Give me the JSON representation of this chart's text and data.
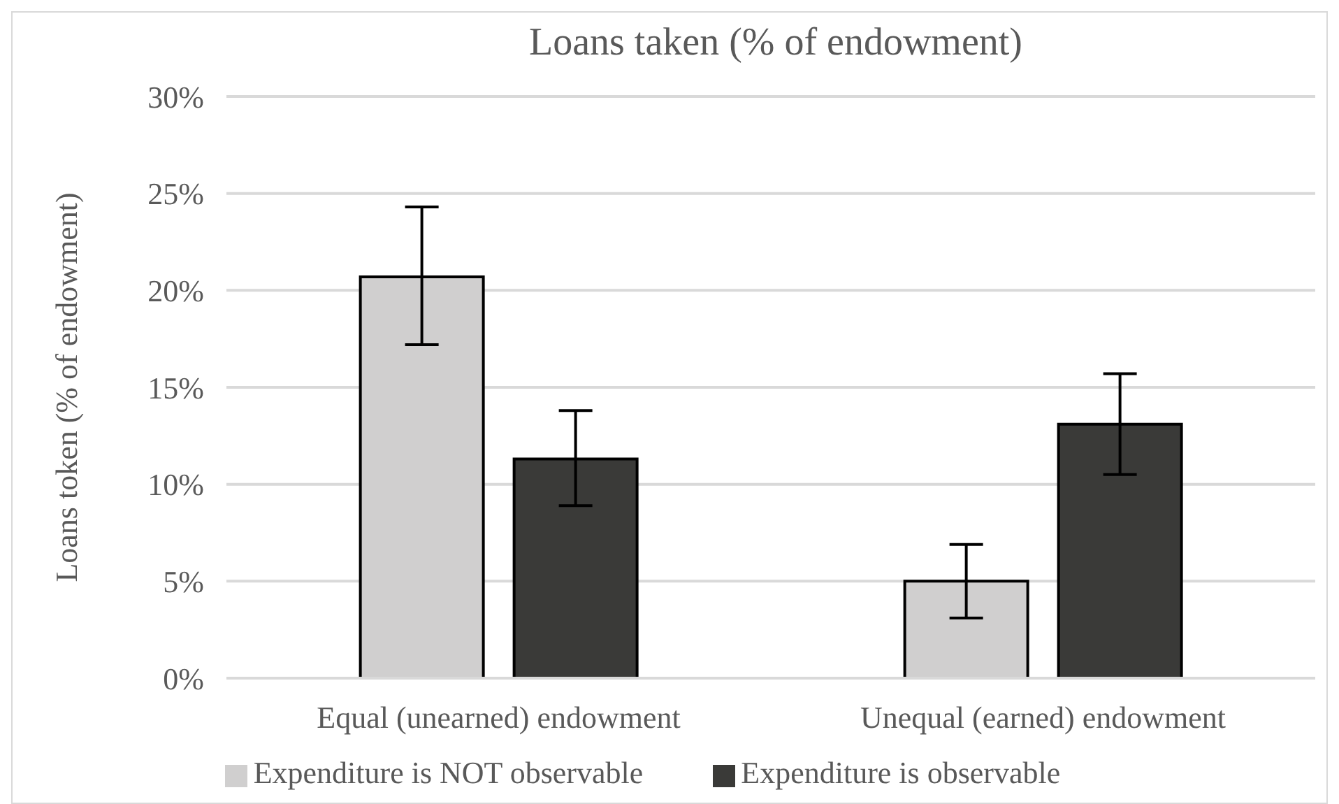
{
  "chart_data": {
    "type": "bar",
    "title": "Loans taken (% of endowment)",
    "ylabel": "Loans token (% of endowment)",
    "categories": [
      "Equal (unearned) endowment",
      "Unequal (earned) endowment"
    ],
    "series": [
      {
        "name": "Expenditure is NOT observable",
        "color": "#d0cfcf",
        "values": [
          20.7,
          5.0
        ],
        "errors": [
          [
            17.2,
            24.3
          ],
          [
            3.1,
            6.9
          ]
        ]
      },
      {
        "name": "Expenditure is observable",
        "color": "#3a3a38",
        "values": [
          11.3,
          13.1
        ],
        "errors": [
          [
            8.9,
            13.8
          ],
          [
            10.5,
            15.7
          ]
        ]
      }
    ],
    "ylim": [
      0,
      30
    ],
    "yticks": [
      {
        "value": 0,
        "label": "0%"
      },
      {
        "value": 5,
        "label": "5%"
      },
      {
        "value": 10,
        "label": "10%"
      },
      {
        "value": 15,
        "label": "15%"
      },
      {
        "value": 20,
        "label": "20%"
      },
      {
        "value": 25,
        "label": "25%"
      },
      {
        "value": 30,
        "label": "30%"
      }
    ],
    "grid": "y",
    "legend": "bottom"
  }
}
